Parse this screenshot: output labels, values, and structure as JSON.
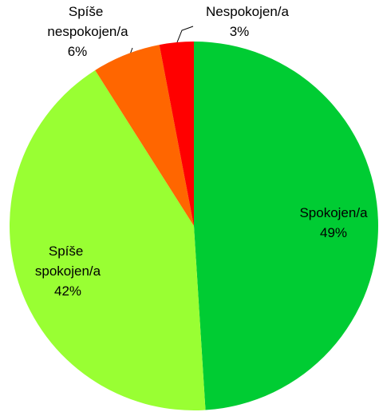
{
  "chart_data": {
    "type": "pie",
    "categories": [
      "Spokojen/a",
      "Spíše spokojen/a",
      "Spíše nespokojen/a",
      "Nespokojen/a"
    ],
    "values": [
      49,
      42,
      6,
      3
    ],
    "value_labels": [
      "49%",
      "42%",
      "6%",
      "3%"
    ],
    "colors": [
      "#00cc33",
      "#99ff33",
      "#ff6600",
      "#ff0000"
    ]
  }
}
